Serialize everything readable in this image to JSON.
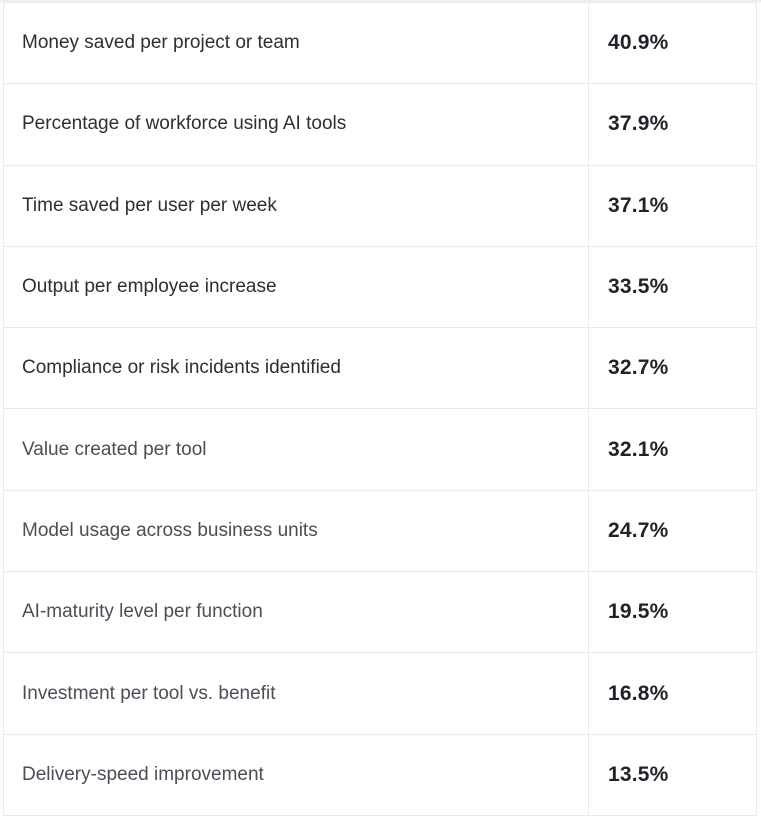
{
  "table": {
    "rows": [
      {
        "metric": "Money saved per project or team",
        "value": "40.9%"
      },
      {
        "metric": "Percentage of workforce using AI tools",
        "value": "37.9%"
      },
      {
        "metric": "Time saved per user per week",
        "value": "37.1%"
      },
      {
        "metric": "Output per employee increase",
        "value": "33.5%"
      },
      {
        "metric": "Compliance or risk incidents identified",
        "value": "32.7%"
      },
      {
        "metric": "Value created per tool",
        "value": "32.1%"
      },
      {
        "metric": "Model usage across business units",
        "value": "24.7%"
      },
      {
        "metric": "AI-maturity level per function",
        "value": "19.5%"
      },
      {
        "metric": "Investment per tool vs. benefit",
        "value": "16.8%"
      },
      {
        "metric": "Delivery-speed improvement",
        "value": "13.5%"
      }
    ]
  }
}
